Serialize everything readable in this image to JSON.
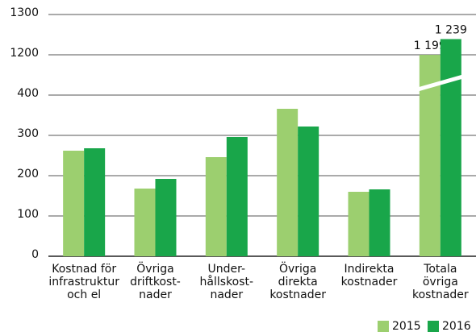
{
  "chart_data": {
    "type": "bar",
    "categories": [
      "Kostnad för\ninfrastruktur\noch el",
      "Övriga\ndriftkost-\nnader",
      "Under-\nhållskost-\nnader",
      "Övriga\ndirekta\nkostnader",
      "Indirekta\nkostnader",
      "Totala\növriga\nkostnader"
    ],
    "series": [
      {
        "name": "2015",
        "color": "#9ccf6f",
        "values": [
          262,
          168,
          246,
          366,
          160,
          1199
        ],
        "value_labels": [
          null,
          null,
          null,
          null,
          null,
          "1 199"
        ]
      },
      {
        "name": "2016",
        "color": "#19a64a",
        "values": [
          268,
          192,
          296,
          322,
          166,
          1239
        ],
        "value_labels": [
          null,
          null,
          null,
          null,
          null,
          "1 239"
        ]
      }
    ],
    "ylim": [
      0,
      1300
    ],
    "yticks": [
      0,
      100,
      200,
      300,
      400,
      1200,
      1300
    ],
    "ybreak": [
      400,
      1200
    ],
    "grid": true,
    "legend": "bottom-right"
  }
}
